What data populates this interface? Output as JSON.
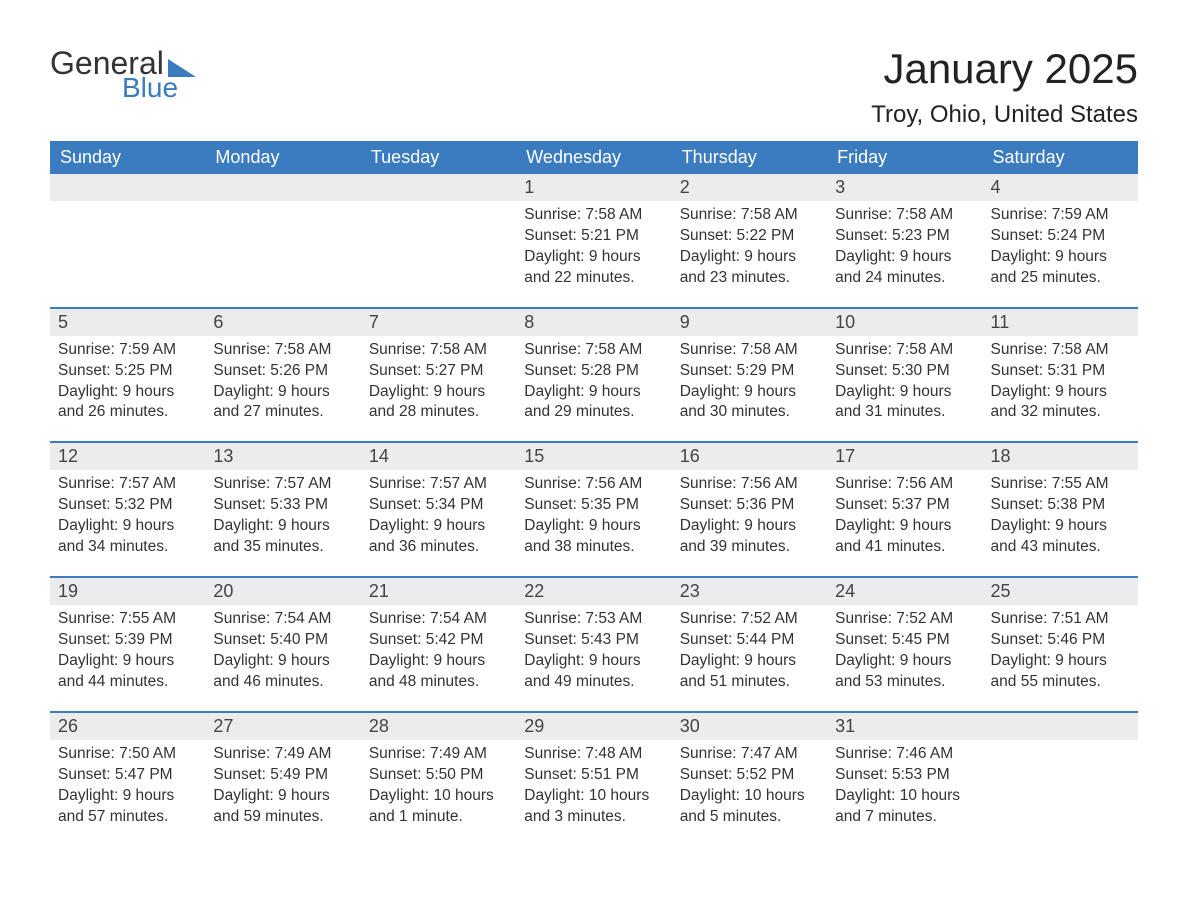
{
  "logo": {
    "text_general": "General",
    "text_blue": "Blue",
    "icon_color": "#3b7bbf"
  },
  "title": {
    "month": "January 2025",
    "location": "Troy, Ohio, United States"
  },
  "colors": {
    "header_bg": "#3b7bbf",
    "header_text": "#ffffff",
    "daynum_bg": "#ececec",
    "border": "#3b7bbf",
    "body_text": "#333333",
    "background": "#ffffff"
  },
  "day_headers": [
    "Sunday",
    "Monday",
    "Tuesday",
    "Wednesday",
    "Thursday",
    "Friday",
    "Saturday"
  ],
  "weeks": [
    [
      null,
      null,
      null,
      {
        "num": "1",
        "sunrise": "Sunrise: 7:58 AM",
        "sunset": "Sunset: 5:21 PM",
        "daylight": "Daylight: 9 hours and 22 minutes."
      },
      {
        "num": "2",
        "sunrise": "Sunrise: 7:58 AM",
        "sunset": "Sunset: 5:22 PM",
        "daylight": "Daylight: 9 hours and 23 minutes."
      },
      {
        "num": "3",
        "sunrise": "Sunrise: 7:58 AM",
        "sunset": "Sunset: 5:23 PM",
        "daylight": "Daylight: 9 hours and 24 minutes."
      },
      {
        "num": "4",
        "sunrise": "Sunrise: 7:59 AM",
        "sunset": "Sunset: 5:24 PM",
        "daylight": "Daylight: 9 hours and 25 minutes."
      }
    ],
    [
      {
        "num": "5",
        "sunrise": "Sunrise: 7:59 AM",
        "sunset": "Sunset: 5:25 PM",
        "daylight": "Daylight: 9 hours and 26 minutes."
      },
      {
        "num": "6",
        "sunrise": "Sunrise: 7:58 AM",
        "sunset": "Sunset: 5:26 PM",
        "daylight": "Daylight: 9 hours and 27 minutes."
      },
      {
        "num": "7",
        "sunrise": "Sunrise: 7:58 AM",
        "sunset": "Sunset: 5:27 PM",
        "daylight": "Daylight: 9 hours and 28 minutes."
      },
      {
        "num": "8",
        "sunrise": "Sunrise: 7:58 AM",
        "sunset": "Sunset: 5:28 PM",
        "daylight": "Daylight: 9 hours and 29 minutes."
      },
      {
        "num": "9",
        "sunrise": "Sunrise: 7:58 AM",
        "sunset": "Sunset: 5:29 PM",
        "daylight": "Daylight: 9 hours and 30 minutes."
      },
      {
        "num": "10",
        "sunrise": "Sunrise: 7:58 AM",
        "sunset": "Sunset: 5:30 PM",
        "daylight": "Daylight: 9 hours and 31 minutes."
      },
      {
        "num": "11",
        "sunrise": "Sunrise: 7:58 AM",
        "sunset": "Sunset: 5:31 PM",
        "daylight": "Daylight: 9 hours and 32 minutes."
      }
    ],
    [
      {
        "num": "12",
        "sunrise": "Sunrise: 7:57 AM",
        "sunset": "Sunset: 5:32 PM",
        "daylight": "Daylight: 9 hours and 34 minutes."
      },
      {
        "num": "13",
        "sunrise": "Sunrise: 7:57 AM",
        "sunset": "Sunset: 5:33 PM",
        "daylight": "Daylight: 9 hours and 35 minutes."
      },
      {
        "num": "14",
        "sunrise": "Sunrise: 7:57 AM",
        "sunset": "Sunset: 5:34 PM",
        "daylight": "Daylight: 9 hours and 36 minutes."
      },
      {
        "num": "15",
        "sunrise": "Sunrise: 7:56 AM",
        "sunset": "Sunset: 5:35 PM",
        "daylight": "Daylight: 9 hours and 38 minutes."
      },
      {
        "num": "16",
        "sunrise": "Sunrise: 7:56 AM",
        "sunset": "Sunset: 5:36 PM",
        "daylight": "Daylight: 9 hours and 39 minutes."
      },
      {
        "num": "17",
        "sunrise": "Sunrise: 7:56 AM",
        "sunset": "Sunset: 5:37 PM",
        "daylight": "Daylight: 9 hours and 41 minutes."
      },
      {
        "num": "18",
        "sunrise": "Sunrise: 7:55 AM",
        "sunset": "Sunset: 5:38 PM",
        "daylight": "Daylight: 9 hours and 43 minutes."
      }
    ],
    [
      {
        "num": "19",
        "sunrise": "Sunrise: 7:55 AM",
        "sunset": "Sunset: 5:39 PM",
        "daylight": "Daylight: 9 hours and 44 minutes."
      },
      {
        "num": "20",
        "sunrise": "Sunrise: 7:54 AM",
        "sunset": "Sunset: 5:40 PM",
        "daylight": "Daylight: 9 hours and 46 minutes."
      },
      {
        "num": "21",
        "sunrise": "Sunrise: 7:54 AM",
        "sunset": "Sunset: 5:42 PM",
        "daylight": "Daylight: 9 hours and 48 minutes."
      },
      {
        "num": "22",
        "sunrise": "Sunrise: 7:53 AM",
        "sunset": "Sunset: 5:43 PM",
        "daylight": "Daylight: 9 hours and 49 minutes."
      },
      {
        "num": "23",
        "sunrise": "Sunrise: 7:52 AM",
        "sunset": "Sunset: 5:44 PM",
        "daylight": "Daylight: 9 hours and 51 minutes."
      },
      {
        "num": "24",
        "sunrise": "Sunrise: 7:52 AM",
        "sunset": "Sunset: 5:45 PM",
        "daylight": "Daylight: 9 hours and 53 minutes."
      },
      {
        "num": "25",
        "sunrise": "Sunrise: 7:51 AM",
        "sunset": "Sunset: 5:46 PM",
        "daylight": "Daylight: 9 hours and 55 minutes."
      }
    ],
    [
      {
        "num": "26",
        "sunrise": "Sunrise: 7:50 AM",
        "sunset": "Sunset: 5:47 PM",
        "daylight": "Daylight: 9 hours and 57 minutes."
      },
      {
        "num": "27",
        "sunrise": "Sunrise: 7:49 AM",
        "sunset": "Sunset: 5:49 PM",
        "daylight": "Daylight: 9 hours and 59 minutes."
      },
      {
        "num": "28",
        "sunrise": "Sunrise: 7:49 AM",
        "sunset": "Sunset: 5:50 PM",
        "daylight": "Daylight: 10 hours and 1 minute."
      },
      {
        "num": "29",
        "sunrise": "Sunrise: 7:48 AM",
        "sunset": "Sunset: 5:51 PM",
        "daylight": "Daylight: 10 hours and 3 minutes."
      },
      {
        "num": "30",
        "sunrise": "Sunrise: 7:47 AM",
        "sunset": "Sunset: 5:52 PM",
        "daylight": "Daylight: 10 hours and 5 minutes."
      },
      {
        "num": "31",
        "sunrise": "Sunrise: 7:46 AM",
        "sunset": "Sunset: 5:53 PM",
        "daylight": "Daylight: 10 hours and 7 minutes."
      },
      null
    ]
  ]
}
